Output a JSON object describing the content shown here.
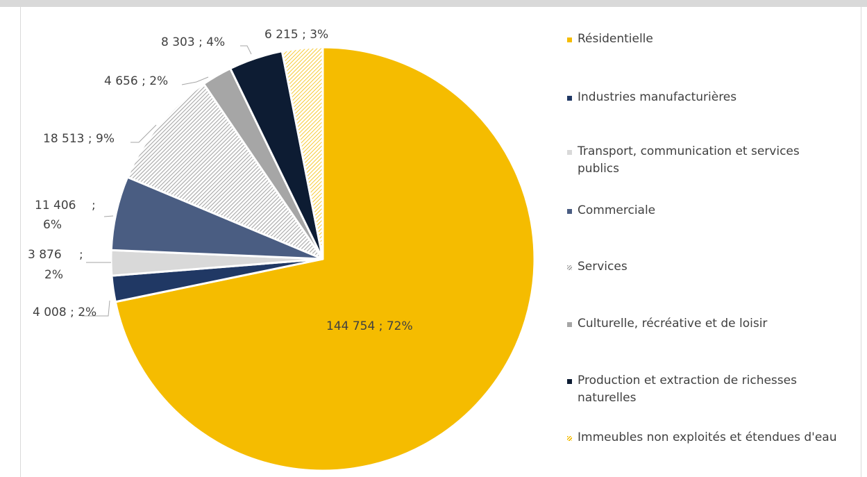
{
  "chart_data": {
    "type": "pie",
    "start_angle": "top (12 o'clock), clockwise",
    "legend_position": "right",
    "slices": [
      {
        "name": "Résidentielle",
        "value": 144754,
        "percent": 72,
        "value_label": "144 754",
        "percent_label": "; 72%",
        "color": "#f5bc00",
        "pattern": "solid"
      },
      {
        "name": "Industries manufacturières",
        "value": 4008,
        "percent": 2,
        "value_label": "4 008",
        "percent_label": "; 2%",
        "color": "#203864",
        "pattern": "solid"
      },
      {
        "name": "Transport, communication et services publics",
        "value": 3876,
        "percent": 2,
        "value_label": "3 876",
        "percent_label": ";",
        "percent_label_2": "2%",
        "color": "#d9d9d9",
        "pattern": "solid"
      },
      {
        "name": "Commerciale",
        "value": 11406,
        "percent": 6,
        "value_label": "11 406",
        "percent_label": ";",
        "percent_label_2": "6%",
        "color": "#4a5d82",
        "pattern": "solid"
      },
      {
        "name": "Services",
        "value": 18513,
        "percent": 9,
        "value_label": "18 513",
        "percent_label": "; 9%",
        "color": "#a6a6a6",
        "pattern": "diagonal-stripes"
      },
      {
        "name": "Culturelle, récréative et de loisir",
        "value": 4656,
        "percent": 2,
        "value_label": "4 656",
        "percent_label": "; 2%",
        "color": "#a6a6a6",
        "pattern": "solid"
      },
      {
        "name": "Production et extraction de richesses naturelles",
        "value": 8303,
        "percent": 4,
        "value_label": "8 303",
        "percent_label": "; 4%",
        "color": "#0d1c33",
        "pattern": "solid"
      },
      {
        "name": "Immeubles non exploités et étendues d'eau",
        "value": 6215,
        "percent": 3,
        "value_label": "6 215",
        "percent_label": "; 3%",
        "color": "#f5bc00",
        "pattern": "diagonal-stripes"
      }
    ]
  },
  "legend": {
    "items": [
      {
        "label": "Résidentielle",
        "swatch_color": "#f5bc00",
        "pattern": "solid"
      },
      {
        "label": "Industries manufacturières",
        "swatch_color": "#203864",
        "pattern": "solid"
      },
      {
        "label": "Transport, communication et services",
        "label_line2": "publics",
        "swatch_color": "#d9d9d9",
        "pattern": "solid"
      },
      {
        "label": "Commerciale",
        "swatch_color": "#4a5d82",
        "pattern": "solid"
      },
      {
        "label": "Services",
        "swatch_color": "#a6a6a6",
        "pattern": "diagonal-stripes"
      },
      {
        "label": "Culturelle, récréative et de loisir",
        "swatch_color": "#a6a6a6",
        "pattern": "solid"
      },
      {
        "label": "Production et extraction de richesses",
        "label_line2": "naturelles",
        "swatch_color": "#0d1c33",
        "pattern": "solid"
      },
      {
        "label": "Immeubles non exploités et étendues d'eau",
        "swatch_color": "#f5bc00",
        "pattern": "diagonal-stripes"
      }
    ]
  }
}
